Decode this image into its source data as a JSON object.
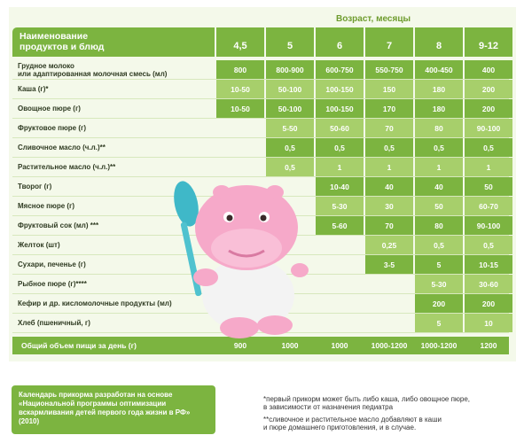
{
  "header": {
    "age_caption": "Возраст, месяцы",
    "name_line1": "Наименование",
    "name_line2": "продуктов и блюд"
  },
  "ages": [
    "4,5",
    "5",
    "6",
    "7",
    "8",
    "9-12"
  ],
  "rows": [
    {
      "label": "Грудное молоко\nили адаптированная молочная смесь (мл)",
      "start": 0,
      "values": [
        "800",
        "800-900",
        "600-750",
        "550-750",
        "400-450",
        "400"
      ]
    },
    {
      "label": "Каша (г)*",
      "start": 0,
      "values": [
        "10-50",
        "50-100",
        "100-150",
        "150",
        "180",
        "200"
      ]
    },
    {
      "label": "Овощное пюре (г)",
      "start": 0,
      "values": [
        "10-50",
        "50-100",
        "100-150",
        "170",
        "180",
        "200"
      ]
    },
    {
      "label": "Фруктовое пюре (г)",
      "start": 1,
      "values": [
        "5-50",
        "50-60",
        "70",
        "80",
        "90-100"
      ]
    },
    {
      "label": "Сливочное масло (ч.л.)**",
      "start": 1,
      "values": [
        "0,5",
        "0,5",
        "0,5",
        "0,5",
        "0,5"
      ]
    },
    {
      "label": "Растительное масло (ч.л.)**",
      "start": 1,
      "values": [
        "0,5",
        "1",
        "1",
        "1",
        "1"
      ]
    },
    {
      "label": "Творог (г)",
      "start": 2,
      "values": [
        "10-40",
        "40",
        "40",
        "50"
      ]
    },
    {
      "label": "Мясное пюре (г)",
      "start": 2,
      "values": [
        "5-30",
        "30",
        "50",
        "60-70"
      ]
    },
    {
      "label": "Фруктовый сок (мл) ***",
      "start": 2,
      "values": [
        "5-60",
        "70",
        "80",
        "90-100"
      ]
    },
    {
      "label": "Желток (шт)",
      "start": 3,
      "values": [
        "0,25",
        "0,5",
        "0,5"
      ]
    },
    {
      "label": "Сухари, печенье (г)",
      "start": 3,
      "values": [
        "3-5",
        "5",
        "10-15"
      ]
    },
    {
      "label": "Рыбное пюре (г)****",
      "start": 4,
      "values": [
        "5-30",
        "30-60"
      ]
    },
    {
      "label": "Кефир и др. кисломолочные продукты (мл)",
      "start": 4,
      "values": [
        "200",
        "200"
      ]
    },
    {
      "label": "Хлеб (пшеничный, г)",
      "start": 4,
      "values": [
        "5",
        "10"
      ]
    }
  ],
  "total": {
    "label": "Общий объем пищи за день (г)",
    "values": [
      "900",
      "1000",
      "1000",
      "1000-1200",
      "1000-1200",
      "1200"
    ]
  },
  "footer": {
    "box_text": "Календарь прикорма разработан на основе «Национальной программы оптимизации вскармливания детей первого года жизни в РФ» (2010)",
    "note1_line1": "*первый прикорм может быть либо каша, либо овощное пюре,",
    "note1_line2": "в зависимости от назначения педиатра",
    "note2_line1": "**сливочное и растительное масло добавляют в каши",
    "note2_line2": "и пюре домашнего приготовления, и в случае."
  },
  "colors": {
    "green": "#7cb440",
    "light_green": "#a7cf6b",
    "hippo_pink": "#f6a9c9"
  },
  "chart_data": {
    "type": "table",
    "title": "",
    "columns": [
      "Наименование продуктов и блюд",
      "4,5",
      "5",
      "6",
      "7",
      "8",
      "9-12"
    ],
    "column_group": "Возраст, месяцы"
  }
}
